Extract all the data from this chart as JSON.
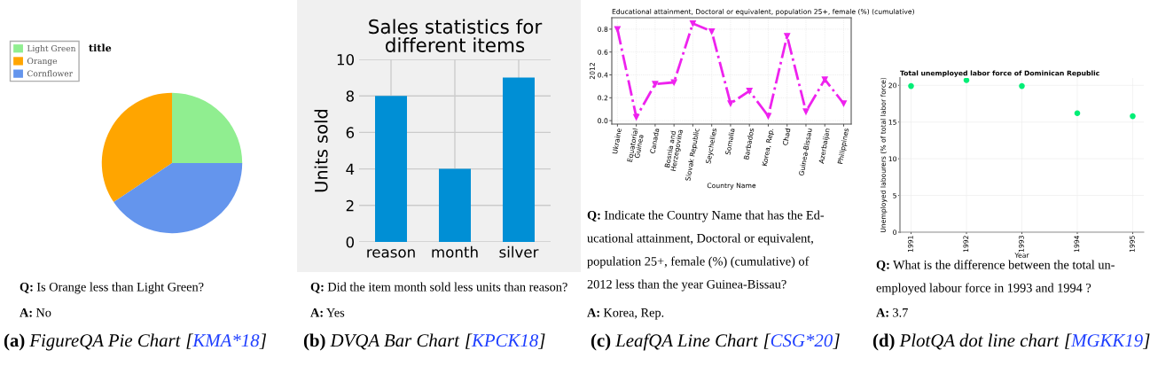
{
  "chart_data": [
    {
      "type": "pie",
      "title": "title",
      "categories": [
        "Light Green",
        "Orange",
        "Cornflower"
      ],
      "values": [
        25,
        34.4,
        40.6
      ],
      "colors": [
        "#90ee90",
        "#ffa500",
        "#6495ed"
      ],
      "legend": "top left",
      "annotations": [
        "Q: Is Orange less than Light Green?",
        "A: No",
        "(a) FigureQA Pie Chart [KMA*18]"
      ]
    },
    {
      "type": "bar",
      "title": "Sales statistics for\ndifferent items",
      "ylabel": "Units sold",
      "categories": [
        "reason",
        "month",
        "silver"
      ],
      "values": [
        8,
        4,
        9
      ],
      "color": "#008fd5",
      "ylim": [
        0,
        10
      ],
      "yticks": [
        0,
        2,
        4,
        6,
        8,
        10
      ],
      "grid": true,
      "annotations": [
        "Q: Did the item month sold less units than reason?",
        "A: Yes",
        "(b) DVQA Bar Chart [KPCK18]"
      ]
    },
    {
      "type": "line",
      "title": "Educational attainment, Doctoral or equivalent, population 25+, female (%) (cumulative)",
      "xlabel": "Country Name",
      "ylabel": "2012",
      "categories": [
        "Ukraine",
        "Equatorial\nGuinea",
        "Canada",
        "Bosnia and\nHerzegovina",
        "Slovak Republic",
        "Seychelles",
        "Somalia",
        "Barbados",
        "Korea, Rep.",
        "Chad",
        "Guinea-Bissau",
        "Azerbaijan",
        "Philippines"
      ],
      "series": [
        {
          "color": "#ee22ee",
          "values": [
            0.8,
            0.03,
            0.32,
            0.335,
            0.85,
            0.78,
            0.15,
            0.26,
            0.04,
            0.74,
            0.08,
            0.36,
            0.15
          ]
        }
      ],
      "marker": "triangle",
      "line_style": "dashdot",
      "ylim": [
        -0.03,
        0.9
      ],
      "yticks": [
        {
          "value": 0,
          "label": "0.0"
        },
        {
          "value": 0.2,
          "label": "0.2"
        },
        {
          "value": 0.4,
          "label": "0.4"
        },
        {
          "value": 0.6,
          "label": "0.6"
        },
        {
          "value": 0.8,
          "label": "0.8"
        }
      ],
      "grid": true,
      "annotations": [
        "Q: Indicate the Country Name that has the Ed-\nucational attainment, Doctoral or equivalent,\npopulation 25+, female (%) (cumulative) of\n2012 less than the year Guinea-Bissau?",
        "A: Korea, Rep.",
        "(c) LeafQA Line Chart [CSG*20]"
      ]
    },
    {
      "type": "scatter",
      "title": "Total unemployed labor force of Dominican Republic",
      "xlabel": "Year",
      "ylabel": "Unemployed labourers (% of total labor force)",
      "x": [
        1991,
        1992,
        1993,
        1994,
        1995
      ],
      "values": [
        19.9,
        20.7,
        19.9,
        16.2,
        15.8
      ],
      "color": "#00ee76",
      "marker": "circle",
      "xlim": [
        1990.8,
        1995.2
      ],
      "xticks": [
        1991,
        1992,
        1993,
        1994,
        1995
      ],
      "ylim": [
        0,
        21
      ],
      "yticks": [
        0,
        5,
        10,
        15,
        20
      ],
      "grid": true,
      "annotations": [
        "Q: What is the difference between the total un-\nemployed labour force in 1993 and 1994 ?",
        "A: 3.7",
        "(d) PlotQA dot line chart [MGKK19]"
      ]
    }
  ]
}
